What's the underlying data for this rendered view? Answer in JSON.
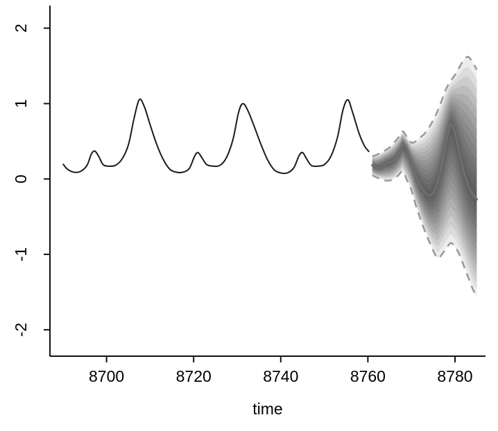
{
  "chart_data": {
    "type": "line",
    "title": "",
    "xlabel": "time",
    "ylabel": "",
    "xlim": [
      8687,
      8787
    ],
    "ylim": [
      -2.35,
      2.3
    ],
    "x_ticks": [
      8700,
      8720,
      8740,
      8760,
      8780
    ],
    "y_ticks": [
      -2,
      -1,
      0,
      1,
      2
    ],
    "grid": false,
    "legend": "none",
    "colors": {
      "observed": "#1a1a1a",
      "forecast_mean": "#6e6e6e",
      "bounds": "#9a9a9a",
      "fan": "#000000",
      "axis": "#111111"
    },
    "fan": {
      "levels": 13,
      "band_opacity": 0.072
    },
    "series": [
      {
        "name": "observed",
        "style": "solid",
        "x": [
          8690,
          8691,
          8692.5,
          8694,
          8695.5,
          8696.5,
          8697.3,
          8698.2,
          8699.2,
          8700.5,
          8702,
          8703.5,
          8705,
          8706.3,
          8707.5,
          8708.6,
          8710,
          8711.5,
          8713,
          8714.5,
          8716,
          8717.5,
          8719,
          8720.2,
          8721,
          8721.9,
          8723,
          8724.5,
          8726,
          8727.5,
          8729,
          8730.3,
          8731.3,
          8732.5,
          8734,
          8735.5,
          8737,
          8738.5,
          8740,
          8741.5,
          8743,
          8744.2,
          8745,
          8745.9,
          8747,
          8748.5,
          8750,
          8751.5,
          8753,
          8754.3,
          8755.4,
          8756.5,
          8758,
          8759.3,
          8760.3
        ],
        "y": [
          0.2,
          0.13,
          0.09,
          0.1,
          0.18,
          0.33,
          0.37,
          0.3,
          0.19,
          0.17,
          0.18,
          0.26,
          0.45,
          0.8,
          1.05,
          0.97,
          0.72,
          0.46,
          0.26,
          0.13,
          0.09,
          0.09,
          0.14,
          0.3,
          0.35,
          0.28,
          0.19,
          0.17,
          0.18,
          0.28,
          0.52,
          0.88,
          1.0,
          0.9,
          0.68,
          0.45,
          0.25,
          0.12,
          0.08,
          0.08,
          0.15,
          0.31,
          0.35,
          0.27,
          0.18,
          0.17,
          0.19,
          0.3,
          0.55,
          0.92,
          1.05,
          0.88,
          0.6,
          0.43,
          0.36
        ]
      },
      {
        "name": "forecast_mean",
        "style": "solid",
        "x": [
          8761,
          8762,
          8763,
          8764,
          8765,
          8766,
          8767,
          8768,
          8769,
          8770,
          8771,
          8772,
          8773,
          8774,
          8775,
          8776,
          8777,
          8778,
          8779,
          8780,
          8781,
          8782,
          8783,
          8784,
          8785
        ],
        "y": [
          0.18,
          0.15,
          0.16,
          0.2,
          0.22,
          0.25,
          0.33,
          0.45,
          0.38,
          0.22,
          0.05,
          -0.08,
          -0.17,
          -0.22,
          -0.18,
          -0.05,
          0.2,
          0.5,
          0.72,
          0.6,
          0.35,
          0.1,
          -0.08,
          -0.2,
          -0.27
        ]
      },
      {
        "name": "upper_bound",
        "style": "dashed",
        "x": [
          8761,
          8762,
          8763,
          8764,
          8765,
          8766,
          8767,
          8768,
          8769,
          8770,
          8771,
          8772,
          8773,
          8774,
          8775,
          8776,
          8777,
          8778,
          8779,
          8780,
          8781,
          8782,
          8783,
          8784,
          8785
        ],
        "y": [
          0.3,
          0.32,
          0.35,
          0.38,
          0.42,
          0.48,
          0.55,
          0.63,
          0.55,
          0.48,
          0.5,
          0.55,
          0.6,
          0.68,
          0.78,
          0.9,
          1.05,
          1.2,
          1.3,
          1.38,
          1.48,
          1.58,
          1.62,
          1.55,
          1.45
        ]
      },
      {
        "name": "lower_bound",
        "style": "dashed",
        "x": [
          8761,
          8762,
          8763,
          8764,
          8765,
          8766,
          8767,
          8768,
          8769,
          8770,
          8771,
          8772,
          8773,
          8774,
          8775,
          8776,
          8777,
          8778,
          8779,
          8780,
          8781,
          8782,
          8783,
          8784,
          8785
        ],
        "y": [
          0.05,
          0.02,
          0.0,
          -0.02,
          -0.02,
          0.0,
          0.05,
          0.1,
          -0.02,
          -0.15,
          -0.35,
          -0.52,
          -0.68,
          -0.82,
          -0.95,
          -1.05,
          -1.0,
          -0.92,
          -0.85,
          -0.9,
          -1.0,
          -1.15,
          -1.3,
          -1.45,
          -1.57
        ]
      }
    ]
  }
}
